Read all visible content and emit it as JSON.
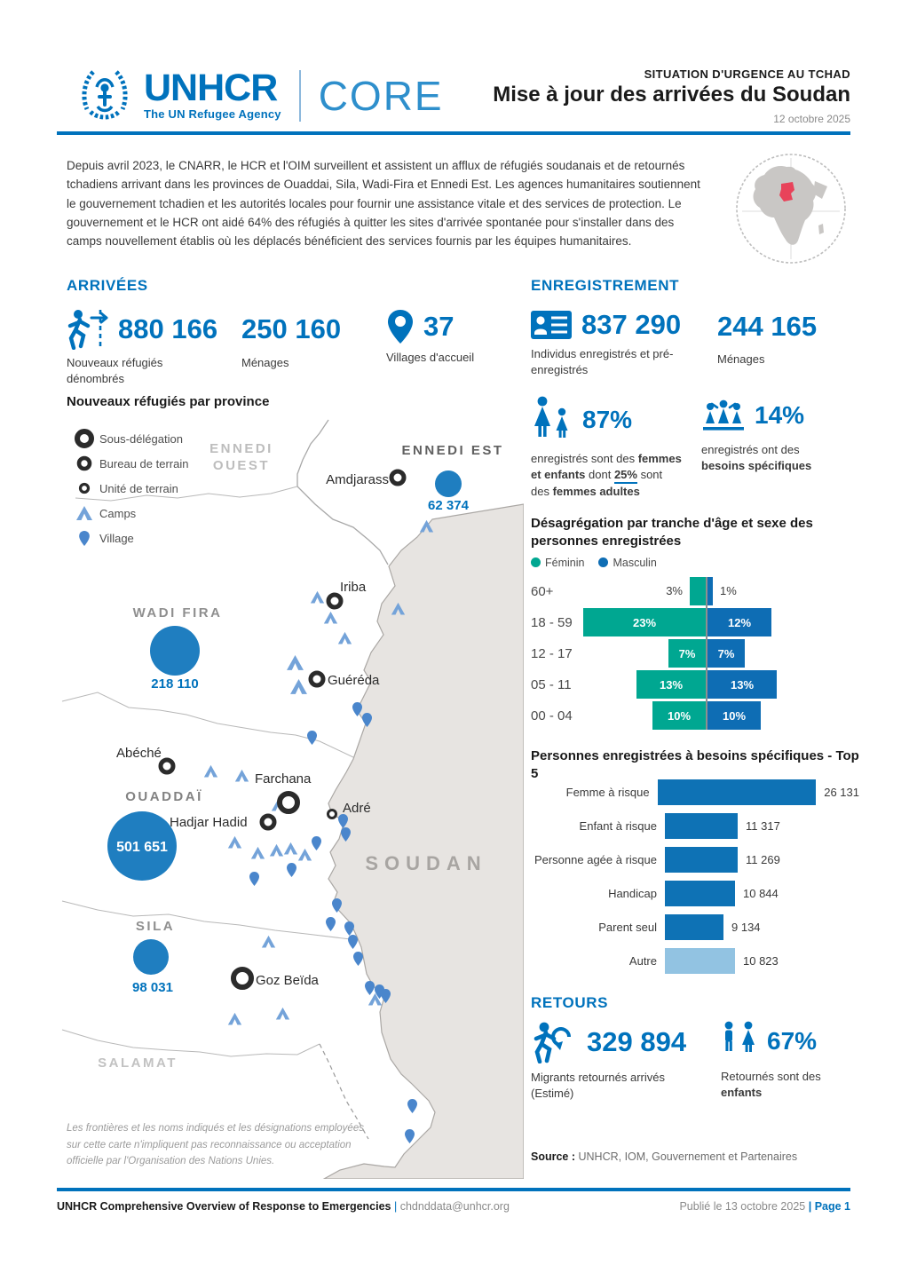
{
  "header": {
    "logo": {
      "name": "UNHCR",
      "tagline": "The UN Refugee Agency",
      "product": "CORE"
    },
    "kicker": "SITUATION D'URGENCE AU TCHAD",
    "title": "Mise à jour des arrivées du Soudan",
    "date": "12 octobre 2025"
  },
  "intro": {
    "text": "Depuis avril 2023, le CNARR, le HCR et l'OIM surveillent et assistent un afflux de réfugiés soudanais et de retournés tchadiens arrivant dans les provinces de Ouaddai, Sila, Wadi-Fira et Ennedi Est. Les agences humanitaires soutiennent le gouvernement tchadien et les autorités locales pour fournir une assistance vitale et des services de protection. Le gouvernement et le HCR ont aidé 64% des réfugiés à quitter les sites d'arrivée spontanée pour s'installer dans des camps nouvellement établis où les déplacés bénéficient des services fournis par les équipes humanitaires."
  },
  "arrivees": {
    "heading": "ARRIVÉES",
    "stats": [
      {
        "value": "880 166",
        "label": "Nouveaux réfugiés dénombrés"
      },
      {
        "value": "250 160",
        "label": "Ménages"
      },
      {
        "value": "37",
        "label": "Villages d'accueil"
      }
    ]
  },
  "map": {
    "title": "Nouveaux réfugiés par province",
    "legend": [
      "Sous-délégation",
      "Bureau de terrain",
      "Unité de terrain",
      "Camps",
      "Village"
    ],
    "labels": {
      "ennedi_ouest_1": "ENNEDI",
      "ennedi_ouest_2": "OUEST",
      "ennedi_est": "ENNEDI EST",
      "wadi_fira": "WADI FIRA",
      "ouaddai": "OUADDAÏ",
      "sila": "SILA",
      "salamat": "SALAMAT",
      "soudan": "SOUDAN"
    },
    "towns": [
      "Amdjarass",
      "Iriba",
      "Guéréda",
      "Abéché",
      "Farchana",
      "Hadjar Hadid",
      "Adré",
      "Goz Beïda"
    ],
    "bubbles": [
      {
        "province": "Ennedi Est",
        "value": "62 374"
      },
      {
        "province": "Wadi Fira",
        "value": "218 110"
      },
      {
        "province": "Ouaddaï",
        "value": "501 651"
      },
      {
        "province": "Sila",
        "value": "98 031"
      }
    ],
    "disclaimer": "Les frontières et les noms indiqués et les désignations employées sur cette carte n'impliquent pas reconnaissance ou acceptation officielle par l'Organisation des Nations Unies."
  },
  "enregistrement": {
    "heading": "ENREGISTREMENT",
    "stats": [
      {
        "value": "837 290",
        "label": "Individus enregistrés et pré-enregistrés"
      },
      {
        "value": "244 165",
        "label": "Ménages"
      }
    ],
    "pct": [
      {
        "value": "87%",
        "label_parts": [
          {
            "t": "enregistrés sont des "
          },
          {
            "t": "femmes et enfants",
            "b": true
          },
          {
            "t": " dont "
          },
          {
            "t": "25%",
            "b": true,
            "u": true
          },
          {
            "t": " sont des "
          },
          {
            "t": "femmes adultes",
            "b": true
          }
        ]
      },
      {
        "value": "14%",
        "label_parts": [
          {
            "t": "enregistrés ont des "
          },
          {
            "t": "besoins spécifiques",
            "b": true
          }
        ]
      }
    ]
  },
  "chart_data": [
    {
      "type": "bar",
      "orientation": "horizontal-pyramid",
      "title": "Désagrégation par tranche d'âge et sexe des personnes enregistrées",
      "categories": [
        "60+",
        "18 - 59",
        "12 - 17",
        "05 - 11",
        "00 - 04"
      ],
      "series": [
        {
          "name": "Féminin",
          "color": "#00A791",
          "values": [
            3,
            23,
            7,
            13,
            10
          ]
        },
        {
          "name": "Masculin",
          "color": "#0E6DB4",
          "values": [
            1,
            12,
            7,
            13,
            10
          ]
        }
      ],
      "value_suffix": "%",
      "legend_position": "top"
    },
    {
      "type": "bar",
      "orientation": "horizontal",
      "title": "Personnes enregistrées à besoins spécifiques - Top 5",
      "categories": [
        "Femme à risque",
        "Enfant à risque",
        "Personne agée à risque",
        "Handicap",
        "Parent seul",
        "Autre"
      ],
      "values": [
        26131,
        11317,
        11269,
        10844,
        9134,
        10823
      ],
      "value_labels": [
        "26 131",
        "11 317",
        "11 269",
        "10 844",
        "9 134",
        "10 823"
      ],
      "bar_colors": [
        "#0E72B5",
        "#0E72B5",
        "#0E72B5",
        "#0E72B5",
        "#0E72B5",
        "#92C3E2"
      ]
    }
  ],
  "retours": {
    "heading": "RETOURS",
    "stat": {
      "value": "329 894",
      "label": "Migrants retournés arrivés (Estimé)"
    },
    "pct": {
      "value": "67%",
      "label_parts": [
        {
          "t": "Retournés sont des "
        },
        {
          "t": "enfants",
          "b": true
        }
      ]
    }
  },
  "source": {
    "label": "Source :",
    "text": " UNHCR, IOM, Gouvernement et Partenaires"
  },
  "footer": {
    "left_bold": "UNHCR Comprehensive Overview of Response to Emergencies ",
    "separator": "| ",
    "email": "chdnddata@unhcr.org",
    "right_gray": "Publié le 13 octobre 2025 ",
    "right_blue": "| Page 1"
  }
}
